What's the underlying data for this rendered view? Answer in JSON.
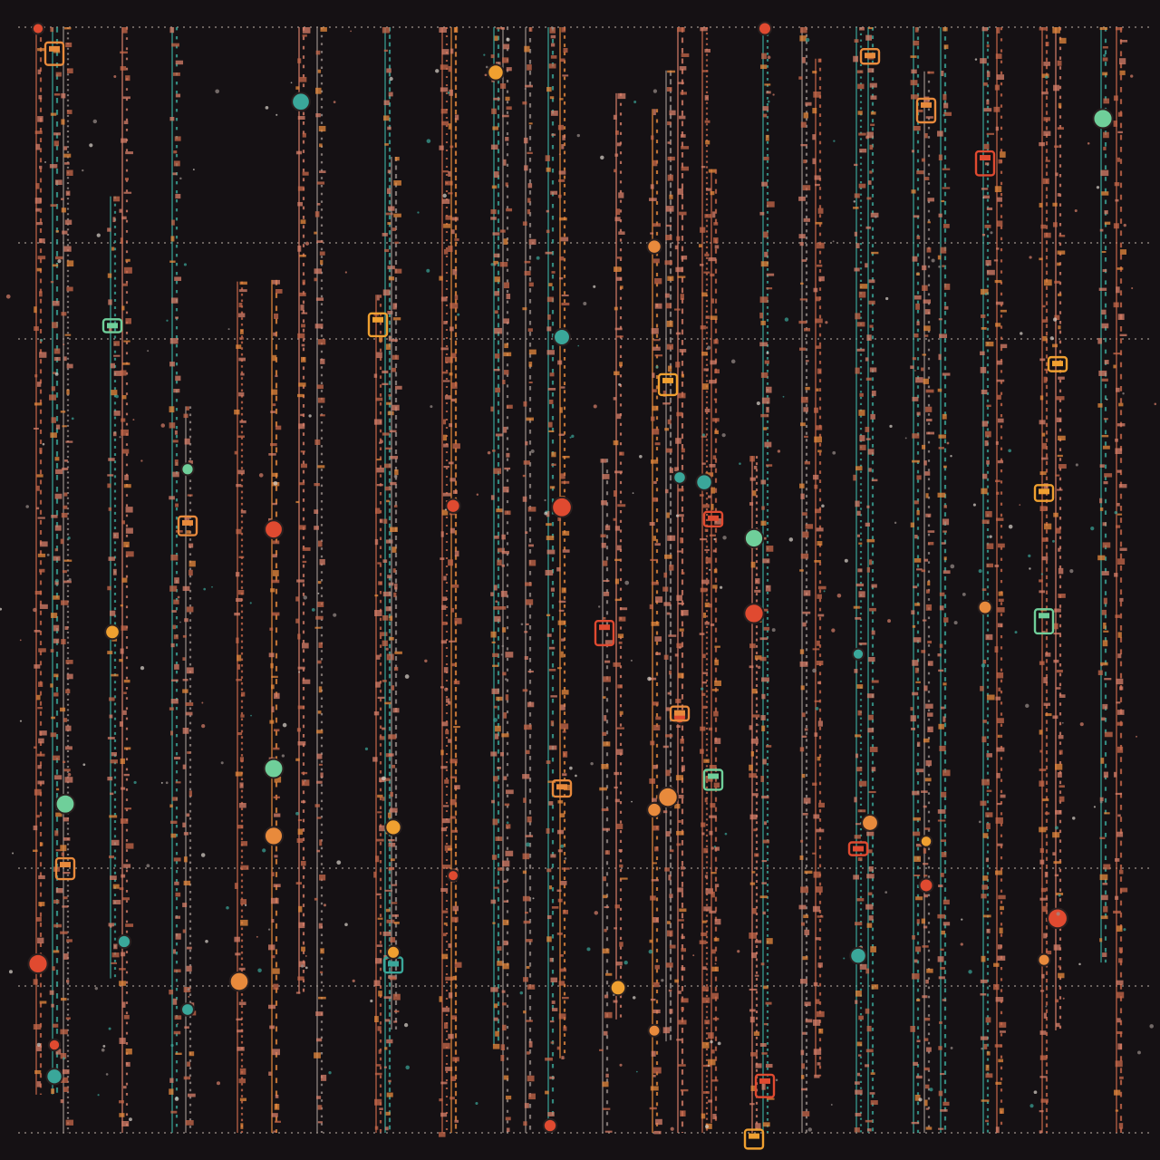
{
  "artwork": {
    "background": "#151114",
    "palette": {
      "copper": "#c8684a",
      "orange": "#e88a3c",
      "salmon": "#d9806a",
      "teal": "#3aa79a",
      "mint": "#6fcf9a",
      "red": "#e04a30",
      "amber": "#f0a030",
      "grey": "#9a8f8a"
    }
  }
}
